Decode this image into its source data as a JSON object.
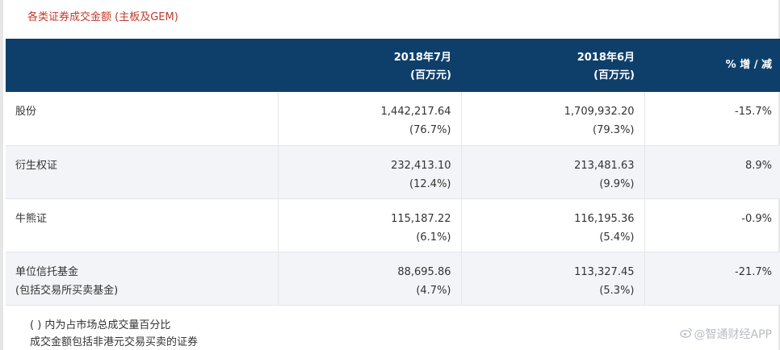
{
  "title": "各类证券成交金额 (主板及GEM)",
  "table": {
    "headers": {
      "col2": {
        "period": "2018年7月",
        "unit": "(百万元)"
      },
      "col3": {
        "period": "2018年6月",
        "unit": "(百万元)"
      },
      "col4": {
        "label": "% 增 / 减"
      }
    },
    "rows": [
      {
        "category": "股份",
        "category_sub": "",
        "jul_value": "1,442,217.64",
        "jul_share": "(76.7%)",
        "jun_value": "1,709,932.20",
        "jun_share": "(79.3%)",
        "change": "-15.7%"
      },
      {
        "category": "衍生权证",
        "category_sub": "",
        "jul_value": "232,413.10",
        "jul_share": "(12.4%)",
        "jun_value": "213,481.63",
        "jun_share": "(9.9%)",
        "change": "8.9%"
      },
      {
        "category": "牛熊证",
        "category_sub": "",
        "jul_value": "115,187.22",
        "jul_share": "(6.1%)",
        "jun_value": "116,195.36",
        "jun_share": "(5.4%)",
        "change": "-0.9%"
      },
      {
        "category": "单位信托基金",
        "category_sub": "(包括交易所买卖基金)",
        "jul_value": "88,695.86",
        "jul_share": "(4.7%)",
        "jun_value": "113,327.45",
        "jun_share": "(5.3%)",
        "change": "-21.7%"
      }
    ]
  },
  "notes": [
    "( ) 内为占市场总成交量百分比",
    "成交金额包括非港元交易买卖的证券"
  ],
  "watermark": {
    "text": "@智通财经APP",
    "icon": "weibo-icon"
  },
  "colors": {
    "title": "#c0392b",
    "header_bg": "#0e3f6b",
    "header_text": "#ffffff",
    "alt_row_bg": "#f2f4f7",
    "watermark": "#b8bcc2"
  }
}
